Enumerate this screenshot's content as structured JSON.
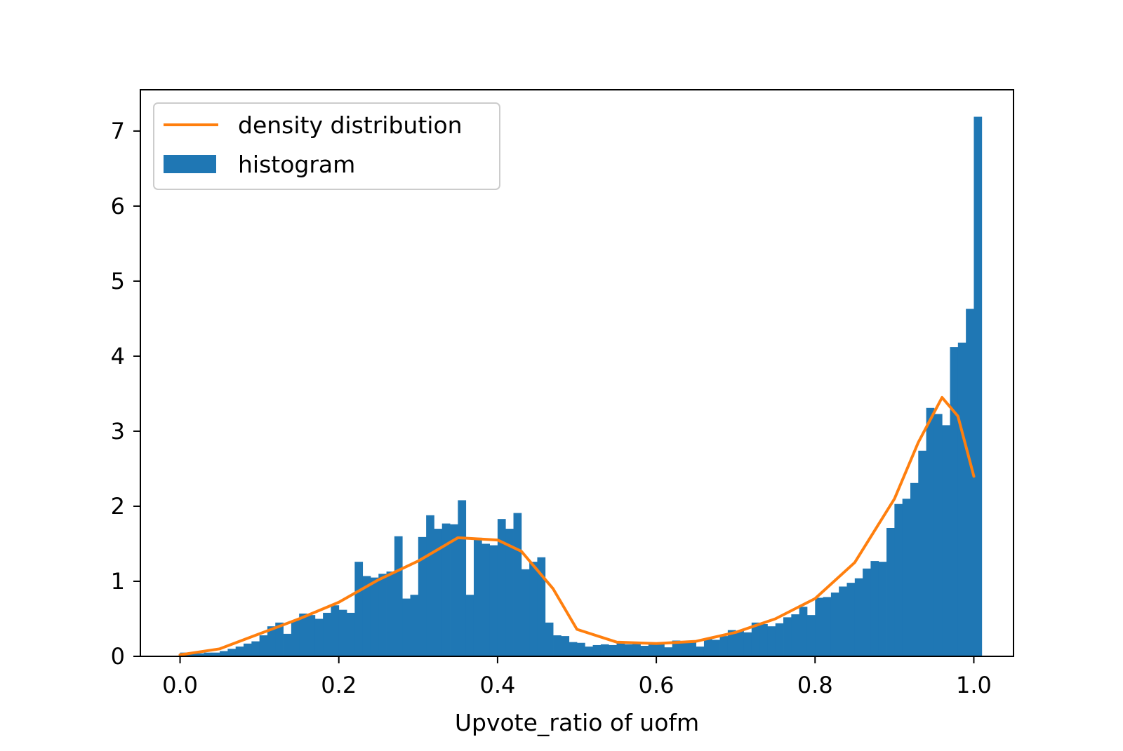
{
  "colors": {
    "histogram": "#1f77b4",
    "density": "#ff7f0e",
    "axes": "#000000",
    "legend_border": "#cccccc"
  },
  "chart_data": {
    "type": "bar",
    "title": "",
    "xlabel": "Upvote_ratio of uofm",
    "ylabel": "",
    "xlim": [
      -0.05,
      1.05
    ],
    "ylim": [
      0,
      7.55
    ],
    "xticks": [
      "0.0",
      "0.2",
      "0.4",
      "0.6",
      "0.8",
      "1.0"
    ],
    "yticks": [
      "0",
      "1",
      "2",
      "3",
      "4",
      "5",
      "6",
      "7"
    ],
    "grid": false,
    "legend": {
      "placement": "top-left",
      "entries": [
        "density distribution",
        "histogram"
      ]
    },
    "histogram": {
      "name": "histogram",
      "bin_start": 0.0,
      "bin_width": 0.01,
      "values": [
        0.05,
        0.05,
        0.04,
        0.05,
        0.05,
        0.07,
        0.1,
        0.13,
        0.17,
        0.2,
        0.28,
        0.4,
        0.45,
        0.3,
        0.48,
        0.57,
        0.55,
        0.5,
        0.58,
        0.68,
        0.62,
        0.58,
        1.26,
        1.07,
        1.05,
        1.1,
        1.13,
        1.6,
        0.77,
        0.82,
        1.59,
        1.88,
        1.7,
        1.77,
        1.76,
        2.08,
        0.82,
        1.58,
        1.5,
        1.48,
        1.83,
        1.7,
        1.91,
        1.16,
        1.26,
        1.32,
        0.45,
        0.28,
        0.27,
        0.19,
        0.18,
        0.13,
        0.15,
        0.16,
        0.15,
        0.18,
        0.16,
        0.17,
        0.14,
        0.16,
        0.16,
        0.12,
        0.21,
        0.18,
        0.2,
        0.13,
        0.23,
        0.22,
        0.27,
        0.35,
        0.34,
        0.32,
        0.45,
        0.43,
        0.4,
        0.44,
        0.52,
        0.56,
        0.66,
        0.55,
        0.78,
        0.79,
        0.85,
        0.93,
        0.98,
        1.04,
        1.17,
        1.27,
        1.26,
        1.71,
        2.03,
        2.1,
        2.31,
        2.74,
        3.31,
        3.23,
        3.08,
        4.12,
        4.18,
        4.63,
        7.19
      ]
    },
    "series": [
      {
        "name": "density distribution",
        "x": [
          0.0,
          0.05,
          0.1,
          0.15,
          0.2,
          0.25,
          0.3,
          0.35,
          0.4,
          0.43,
          0.47,
          0.5,
          0.55,
          0.6,
          0.65,
          0.7,
          0.75,
          0.8,
          0.85,
          0.9,
          0.93,
          0.96,
          0.98,
          1.0
        ],
        "y": [
          0.02,
          0.1,
          0.3,
          0.5,
          0.72,
          1.02,
          1.27,
          1.58,
          1.55,
          1.4,
          0.9,
          0.36,
          0.19,
          0.17,
          0.2,
          0.32,
          0.5,
          0.77,
          1.25,
          2.1,
          2.85,
          3.45,
          3.2,
          2.4
        ]
      }
    ]
  }
}
